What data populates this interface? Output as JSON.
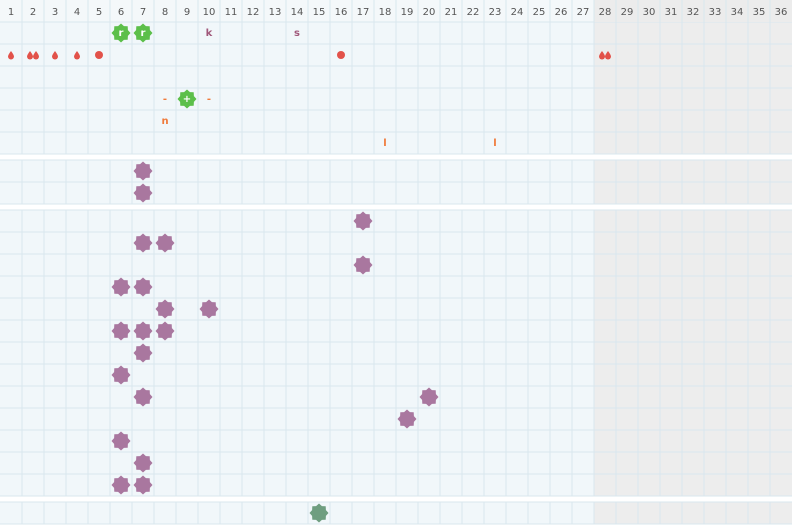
{
  "header": {
    "days": [
      1,
      2,
      3,
      4,
      5,
      6,
      7,
      8,
      9,
      10,
      11,
      12,
      13,
      14,
      15,
      16,
      17,
      18,
      19,
      20,
      21,
      22,
      23,
      24,
      25,
      26,
      27,
      28,
      29,
      30,
      31,
      32,
      33,
      34,
      35,
      36
    ]
  },
  "labels": [
    "r",
    "r",
    "k",
    "s",
    "-",
    "+",
    "-",
    "n",
    "l",
    "l"
  ]
}
